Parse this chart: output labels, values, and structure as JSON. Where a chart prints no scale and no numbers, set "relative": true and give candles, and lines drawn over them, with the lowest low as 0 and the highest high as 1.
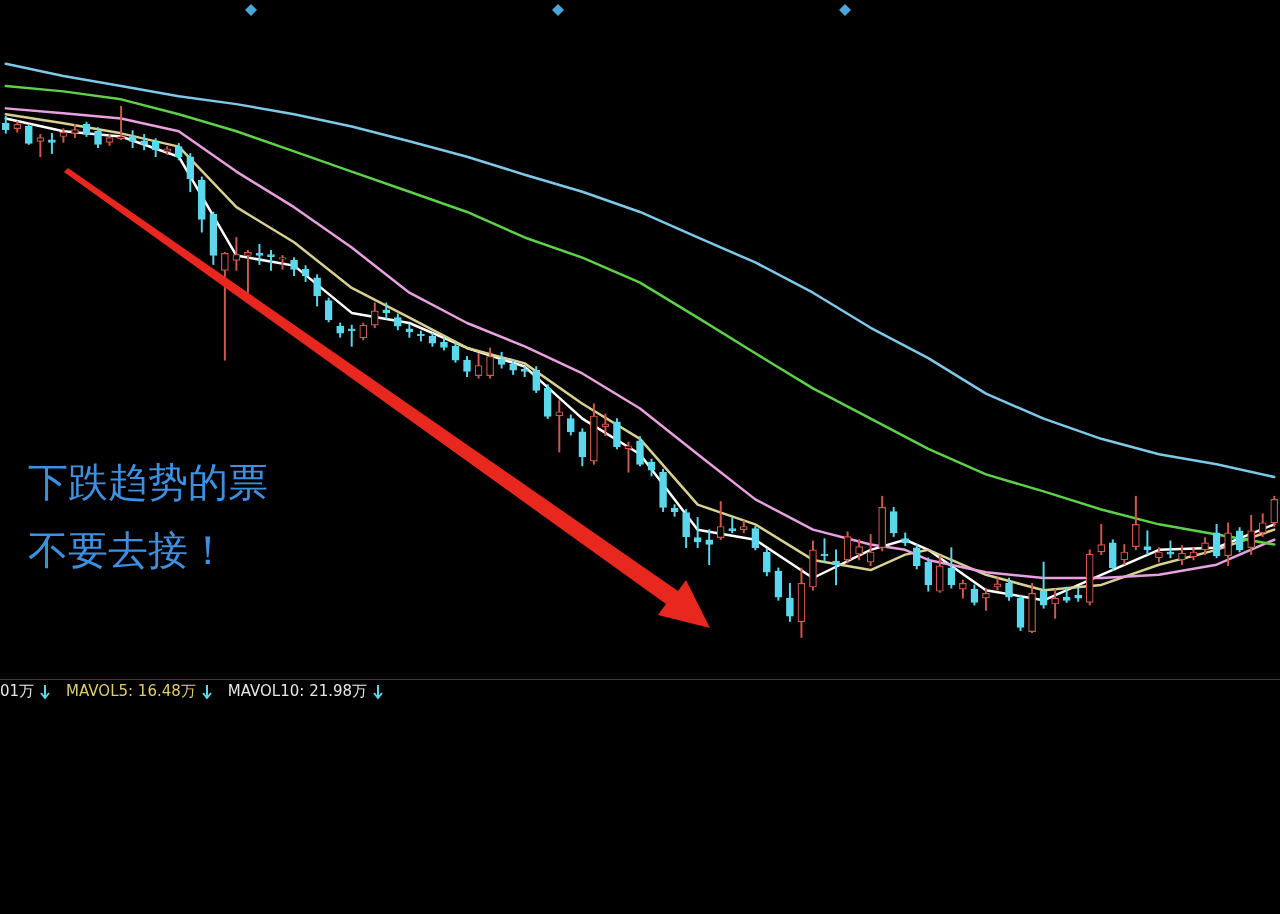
{
  "chart_data": {
    "type": "candlestick",
    "relative": true,
    "legend": false,
    "categories": [
      null,
      null,
      null,
      null,
      null,
      null,
      null,
      null,
      null,
      null,
      null,
      null,
      null,
      null,
      null,
      null,
      null,
      null,
      null,
      null,
      null,
      null,
      null,
      null,
      null,
      null,
      null,
      null,
      null,
      null,
      null,
      null,
      null,
      null,
      null,
      null,
      null,
      null,
      null,
      null,
      null,
      null,
      null,
      null,
      null,
      null,
      null,
      null,
      null,
      null,
      null,
      null,
      null,
      null,
      null,
      null,
      null,
      null,
      null,
      null,
      null,
      null,
      null,
      null,
      null,
      null,
      null,
      null,
      null,
      null,
      null,
      null,
      null,
      null,
      null,
      null,
      null,
      null,
      null,
      null,
      null,
      null,
      null,
      null,
      null,
      null,
      null,
      null,
      null,
      null,
      null,
      null,
      null,
      null,
      null,
      null,
      null,
      null,
      null,
      null,
      null,
      null,
      null,
      null,
      null,
      null,
      null,
      null,
      null,
      null,
      null
    ],
    "ohlc": [
      [
        0.968,
        0.981,
        0.949,
        0.956
      ],
      [
        0.958,
        0.972,
        0.951,
        0.966
      ],
      [
        0.962,
        0.966,
        0.928,
        0.93
      ],
      [
        0.934,
        0.947,
        0.905,
        0.941
      ],
      [
        0.937,
        0.949,
        0.911,
        0.932
      ],
      [
        0.943,
        0.958,
        0.932,
        0.951
      ],
      [
        0.949,
        0.966,
        0.941,
        0.956
      ],
      [
        0.966,
        0.97,
        0.943,
        0.947
      ],
      [
        0.953,
        0.96,
        0.922,
        0.928
      ],
      [
        0.932,
        0.947,
        0.926,
        0.941
      ],
      [
        0.939,
        1.0,
        0.937,
        0.943
      ],
      [
        0.943,
        0.954,
        0.922,
        0.934
      ],
      [
        0.935,
        0.947,
        0.918,
        0.928
      ],
      [
        0.932,
        0.939,
        0.905,
        0.918
      ],
      [
        0.915,
        0.924,
        0.909,
        0.92
      ],
      [
        0.924,
        0.93,
        0.899,
        0.905
      ],
      [
        0.905,
        0.911,
        0.839,
        0.863
      ],
      [
        0.861,
        0.867,
        0.763,
        0.787
      ],
      [
        0.797,
        0.801,
        0.702,
        0.719
      ],
      [
        0.691,
        0.725,
        0.522,
        0.723
      ],
      [
        0.71,
        0.753,
        0.691,
        0.721
      ],
      [
        0.719,
        0.729,
        0.649,
        0.725
      ],
      [
        0.723,
        0.74,
        0.702,
        0.719
      ],
      [
        0.721,
        0.729,
        0.691,
        0.717
      ],
      [
        0.712,
        0.719,
        0.693,
        0.715
      ],
      [
        0.71,
        0.715,
        0.681,
        0.693
      ],
      [
        0.693,
        0.7,
        0.67,
        0.681
      ],
      [
        0.677,
        0.683,
        0.624,
        0.643
      ],
      [
        0.634,
        0.639,
        0.594,
        0.598
      ],
      [
        0.586,
        0.592,
        0.565,
        0.573
      ],
      [
        0.581,
        0.588,
        0.548,
        0.577
      ],
      [
        0.564,
        0.592,
        0.56,
        0.588
      ],
      [
        0.588,
        0.63,
        0.583,
        0.615
      ],
      [
        0.617,
        0.63,
        0.6,
        0.611
      ],
      [
        0.602,
        0.609,
        0.579,
        0.586
      ],
      [
        0.581,
        0.59,
        0.565,
        0.575
      ],
      [
        0.571,
        0.577,
        0.558,
        0.568
      ],
      [
        0.567,
        0.573,
        0.548,
        0.554
      ],
      [
        0.556,
        0.564,
        0.541,
        0.546
      ],
      [
        0.548,
        0.554,
        0.518,
        0.522
      ],
      [
        0.522,
        0.529,
        0.491,
        0.501
      ],
      [
        0.493,
        0.535,
        0.488,
        0.512
      ],
      [
        0.493,
        0.545,
        0.488,
        0.529
      ],
      [
        0.524,
        0.537,
        0.507,
        0.514
      ],
      [
        0.514,
        0.522,
        0.495,
        0.503
      ],
      [
        0.505,
        0.51,
        0.491,
        0.501
      ],
      [
        0.503,
        0.51,
        0.461,
        0.465
      ],
      [
        0.469,
        0.476,
        0.412,
        0.416
      ],
      [
        0.417,
        0.446,
        0.349,
        0.425
      ],
      [
        0.412,
        0.419,
        0.381,
        0.387
      ],
      [
        0.387,
        0.393,
        0.323,
        0.34
      ],
      [
        0.332,
        0.44,
        0.326,
        0.417
      ],
      [
        0.397,
        0.421,
        0.38,
        0.402
      ],
      [
        0.406,
        0.412,
        0.355,
        0.359
      ],
      [
        0.355,
        0.368,
        0.311,
        0.361
      ],
      [
        0.37,
        0.378,
        0.323,
        0.326
      ],
      [
        0.33,
        0.336,
        0.304,
        0.315
      ],
      [
        0.311,
        0.317,
        0.237,
        0.245
      ],
      [
        0.243,
        0.25,
        0.228,
        0.237
      ],
      [
        0.235,
        0.241,
        0.169,
        0.19
      ],
      [
        0.188,
        0.226,
        0.169,
        0.18
      ],
      [
        0.184,
        0.203,
        0.137,
        0.175
      ],
      [
        0.188,
        0.256,
        0.184,
        0.209
      ],
      [
        0.205,
        0.226,
        0.197,
        0.201
      ],
      [
        0.203,
        0.22,
        0.197,
        0.209
      ],
      [
        0.205,
        0.209,
        0.165,
        0.169
      ],
      [
        0.161,
        0.167,
        0.116,
        0.123
      ],
      [
        0.125,
        0.131,
        0.07,
        0.076
      ],
      [
        0.074,
        0.102,
        0.03,
        0.04
      ],
      [
        0.03,
        0.131,
        0.0,
        0.102
      ],
      [
        0.095,
        0.182,
        0.089,
        0.165
      ],
      [
        0.157,
        0.186,
        0.142,
        0.154
      ],
      [
        0.144,
        0.165,
        0.099,
        0.137
      ],
      [
        0.146,
        0.199,
        0.14,
        0.19
      ],
      [
        0.157,
        0.184,
        0.146,
        0.171
      ],
      [
        0.142,
        0.194,
        0.135,
        0.161
      ],
      [
        0.169,
        0.266,
        0.163,
        0.245
      ],
      [
        0.237,
        0.245,
        0.19,
        0.197
      ],
      [
        0.186,
        0.197,
        0.173,
        0.178
      ],
      [
        0.169,
        0.175,
        0.129,
        0.135
      ],
      [
        0.142,
        0.15,
        0.087,
        0.099
      ],
      [
        0.087,
        0.154,
        0.085,
        0.135
      ],
      [
        0.131,
        0.169,
        0.093,
        0.099
      ],
      [
        0.091,
        0.108,
        0.074,
        0.102
      ],
      [
        0.091,
        0.099,
        0.061,
        0.066
      ],
      [
        0.074,
        0.093,
        0.051,
        0.083
      ],
      [
        0.095,
        0.112,
        0.089,
        0.101
      ],
      [
        0.102,
        0.112,
        0.07,
        0.076
      ],
      [
        0.074,
        0.08,
        0.013,
        0.019
      ],
      [
        0.011,
        0.102,
        0.009,
        0.083
      ],
      [
        0.087,
        0.142,
        0.055,
        0.061
      ],
      [
        0.063,
        0.091,
        0.036,
        0.074
      ],
      [
        0.076,
        0.095,
        0.066,
        0.07
      ],
      [
        0.08,
        0.093,
        0.068,
        0.074
      ],
      [
        0.066,
        0.165,
        0.061,
        0.157
      ],
      [
        0.161,
        0.213,
        0.156,
        0.175
      ],
      [
        0.178,
        0.184,
        0.127,
        0.131
      ],
      [
        0.146,
        0.175,
        0.137,
        0.161
      ],
      [
        0.171,
        0.266,
        0.165,
        0.213
      ],
      [
        0.171,
        0.201,
        0.156,
        0.165
      ],
      [
        0.15,
        0.169,
        0.142,
        0.161
      ],
      [
        0.161,
        0.182,
        0.15,
        0.157
      ],
      [
        0.146,
        0.173,
        0.137,
        0.159
      ],
      [
        0.152,
        0.169,
        0.146,
        0.161
      ],
      [
        0.165,
        0.188,
        0.156,
        0.178
      ],
      [
        0.197,
        0.213,
        0.15,
        0.154
      ],
      [
        0.154,
        0.216,
        0.135,
        0.197
      ],
      [
        0.201,
        0.207,
        0.161,
        0.165
      ],
      [
        0.169,
        0.23,
        0.156,
        0.201
      ],
      [
        0.197,
        0.233,
        0.19,
        0.216
      ],
      [
        0.216,
        0.266,
        0.209,
        0.26
      ]
    ],
    "series": [
      {
        "type": "line",
        "color": "#7ec8e8",
        "values": [
          1.08,
          null,
          null,
          null,
          null,
          1.057,
          null,
          null,
          null,
          null,
          1.038,
          null,
          null,
          null,
          null,
          1.019,
          null,
          null,
          null,
          null,
          1.004,
          null,
          null,
          null,
          null,
          0.985,
          null,
          null,
          null,
          null,
          0.962,
          null,
          null,
          null,
          null,
          0.934,
          null,
          null,
          null,
          null,
          0.905,
          null,
          null,
          null,
          null,
          0.871,
          null,
          null,
          null,
          null,
          0.839,
          null,
          null,
          null,
          null,
          0.801,
          null,
          null,
          null,
          null,
          0.753,
          null,
          null,
          null,
          null,
          0.706,
          null,
          null,
          null,
          null,
          0.649,
          null,
          null,
          null,
          null,
          0.583,
          null,
          null,
          null,
          null,
          0.526,
          null,
          null,
          null,
          null,
          0.459,
          null,
          null,
          null,
          null,
          0.412,
          null,
          null,
          null,
          null,
          0.374,
          null,
          null,
          null,
          null,
          0.345,
          null,
          null,
          null,
          null,
          0.326,
          null,
          null,
          null,
          null,
          0.302
        ]
      },
      {
        "type": "line",
        "color": "#5fd04a",
        "values": [
          1.038,
          null,
          null,
          null,
          null,
          1.028,
          null,
          null,
          null,
          null,
          1.013,
          null,
          null,
          null,
          null,
          0.985,
          null,
          null,
          null,
          null,
          0.953,
          null,
          null,
          null,
          null,
          0.915,
          null,
          null,
          null,
          null,
          0.877,
          null,
          null,
          null,
          null,
          0.839,
          null,
          null,
          null,
          null,
          0.801,
          null,
          null,
          null,
          null,
          0.753,
          null,
          null,
          null,
          null,
          0.715,
          null,
          null,
          null,
          null,
          0.668,
          null,
          null,
          null,
          null,
          0.602,
          null,
          null,
          null,
          null,
          0.535,
          null,
          null,
          null,
          null,
          0.469,
          null,
          null,
          null,
          null,
          0.412,
          null,
          null,
          null,
          null,
          0.355,
          null,
          null,
          null,
          null,
          0.307,
          null,
          null,
          null,
          null,
          0.275,
          null,
          null,
          null,
          null,
          0.241,
          null,
          null,
          null,
          null,
          0.213,
          null,
          null,
          null,
          null,
          0.194,
          null,
          null,
          null,
          null,
          0.175
        ]
      },
      {
        "type": "line",
        "color": "#e8a0e0",
        "values": [
          0.996,
          null,
          null,
          null,
          null,
          0.987,
          null,
          null,
          null,
          null,
          0.977,
          null,
          null,
          null,
          null,
          0.953,
          null,
          null,
          null,
          null,
          0.877,
          null,
          null,
          null,
          null,
          0.81,
          null,
          null,
          null,
          null,
          0.734,
          null,
          null,
          null,
          null,
          0.649,
          null,
          null,
          null,
          null,
          0.592,
          null,
          null,
          null,
          null,
          0.548,
          null,
          null,
          null,
          null,
          0.497,
          null,
          null,
          null,
          null,
          0.431,
          null,
          null,
          null,
          null,
          0.345,
          null,
          null,
          null,
          null,
          0.26,
          null,
          null,
          null,
          null,
          0.203,
          null,
          null,
          null,
          null,
          0.175,
          null,
          null,
          0.165,
          null,
          0.146,
          null,
          null,
          null,
          null,
          0.123,
          null,
          null,
          null,
          null,
          0.112,
          null,
          null,
          null,
          null,
          0.112,
          null,
          null,
          null,
          null,
          0.118,
          null,
          null,
          null,
          null,
          0.137,
          null,
          null,
          null,
          null,
          0.184
        ]
      },
      {
        "type": "line",
        "color": "#d8d090",
        "values": [
          0.985,
          null,
          null,
          null,
          null,
          0.968,
          null,
          null,
          null,
          null,
          0.949,
          null,
          null,
          null,
          null,
          0.924,
          null,
          null,
          null,
          null,
          0.81,
          null,
          null,
          null,
          null,
          0.744,
          null,
          null,
          null,
          null,
          0.658,
          null,
          null,
          null,
          null,
          0.602,
          null,
          null,
          null,
          null,
          0.545,
          null,
          null,
          null,
          null,
          0.516,
          null,
          null,
          null,
          null,
          0.44,
          null,
          null,
          null,
          null,
          0.374,
          null,
          null,
          null,
          null,
          0.25,
          null,
          null,
          null,
          null,
          0.213,
          null,
          null,
          null,
          null,
          0.146,
          null,
          null,
          null,
          null,
          0.127,
          null,
          null,
          0.156,
          null,
          0.165,
          null,
          null,
          null,
          null,
          0.118,
          null,
          null,
          null,
          null,
          0.089,
          null,
          null,
          null,
          null,
          0.099,
          null,
          null,
          null,
          null,
          0.137,
          null,
          null,
          null,
          null,
          0.165,
          null,
          null,
          null,
          null,
          0.203
        ]
      },
      {
        "type": "line",
        "color": "#ffffff",
        "values": [
          0.977,
          null,
          null,
          null,
          null,
          0.953,
          null,
          null,
          null,
          null,
          0.943,
          null,
          null,
          null,
          null,
          0.905,
          null,
          null,
          null,
          null,
          0.719,
          null,
          null,
          null,
          null,
          0.7,
          null,
          null,
          null,
          null,
          0.611,
          null,
          null,
          null,
          null,
          0.592,
          null,
          null,
          null,
          null,
          0.545,
          null,
          null,
          null,
          null,
          0.51,
          null,
          null,
          null,
          null,
          0.412,
          null,
          null,
          null,
          null,
          0.345,
          null,
          null,
          null,
          null,
          0.203,
          null,
          null,
          null,
          null,
          0.184,
          null,
          null,
          null,
          null,
          0.112,
          null,
          null,
          null,
          null,
          0.165,
          null,
          null,
          0.184,
          null,
          0.165,
          null,
          null,
          null,
          null,
          0.089,
          null,
          null,
          null,
          null,
          0.07,
          null,
          null,
          null,
          null,
          0.118,
          null,
          null,
          null,
          null,
          0.165,
          null,
          null,
          null,
          null,
          0.169,
          null,
          null,
          null,
          null,
          0.213
        ]
      }
    ],
    "annotations": [
      "下跌趋势的票",
      "不要去接！",
      "01万",
      "MAVOL5: 16.48万",
      "MAVOL10: 21.98万"
    ]
  }
}
